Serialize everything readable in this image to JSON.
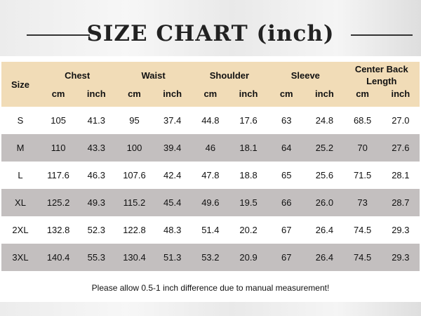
{
  "title": "SIZE CHART (inch)",
  "colors": {
    "header_bg": "#f1dcb7",
    "stripe": "#c3bfbf",
    "text": "#111111"
  },
  "table": {
    "size_header": "Size",
    "groups": [
      "Chest",
      "Waist",
      "Shoulder",
      "Sleeve",
      "Center Back Length"
    ],
    "units": [
      "cm",
      "inch"
    ],
    "rows": [
      [
        "S",
        "105",
        "41.3",
        "95",
        "37.4",
        "44.8",
        "17.6",
        "63",
        "24.8",
        "68.5",
        "27.0"
      ],
      [
        "M",
        "110",
        "43.3",
        "100",
        "39.4",
        "46",
        "18.1",
        "64",
        "25.2",
        "70",
        "27.6"
      ],
      [
        "L",
        "117.6",
        "46.3",
        "107.6",
        "42.4",
        "47.8",
        "18.8",
        "65",
        "25.6",
        "71.5",
        "28.1"
      ],
      [
        "XL",
        "125.2",
        "49.3",
        "115.2",
        "45.4",
        "49.6",
        "19.5",
        "66",
        "26.0",
        "73",
        "28.7"
      ],
      [
        "2XL",
        "132.8",
        "52.3",
        "122.8",
        "48.3",
        "51.4",
        "20.2",
        "67",
        "26.4",
        "74.5",
        "29.3"
      ],
      [
        "3XL",
        "140.4",
        "55.3",
        "130.4",
        "51.3",
        "53.2",
        "20.9",
        "67",
        "26.4",
        "74.5",
        "29.3"
      ]
    ]
  },
  "note": "Please allow 0.5-1 inch difference due to manual measurement!"
}
